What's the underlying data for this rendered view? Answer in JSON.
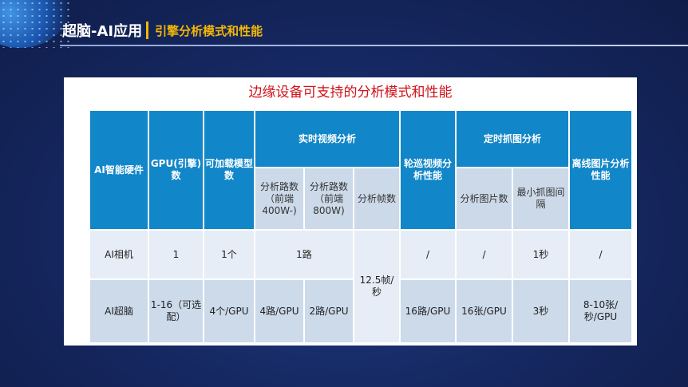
{
  "header": {
    "title": "超脑-AI应用",
    "subtitle": "引擎分析模式和性能"
  },
  "table_title": "边缘设备可支持的分析模式和性能",
  "columns": {
    "hardware": "AI智能硬件",
    "gpu": "GPU(引擎)数",
    "models": "可加载模型数",
    "realtime": "实时视频分析",
    "realtime_sub": [
      "分析路数（前端400W-)",
      "分析路数（前端800W)",
      "分析帧数"
    ],
    "patrol": "轮巡视频分析性能",
    "snapshot": "定时抓图分析",
    "snapshot_sub": [
      "分析图片数",
      "最小抓图间隔"
    ],
    "offline": "离线图片分析性能"
  },
  "rows": [
    {
      "hardware": "AI相机",
      "gpu": "1",
      "models": "1个",
      "realtime_merged": "1路",
      "patrol": "/",
      "pics": "/",
      "interval": "1秒",
      "offline": "/"
    },
    {
      "hardware": "AI超脑",
      "gpu": "1-16（可选配）",
      "models": "4个/GPU",
      "r400": "4路/GPU",
      "r800": "2路/GPU",
      "patrol": "16路/GPU",
      "pics": "16张/GPU",
      "interval": "3秒",
      "offline": "8-10张/秒/GPU"
    }
  ],
  "frame_rate": "12.5帧/秒"
}
